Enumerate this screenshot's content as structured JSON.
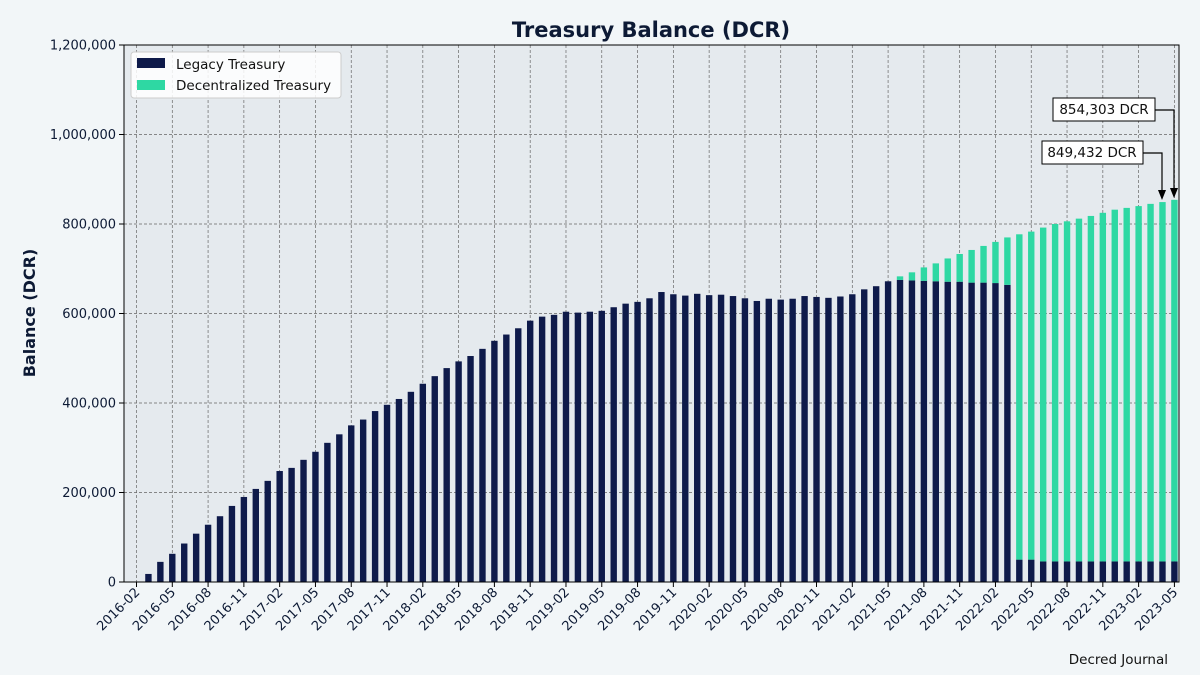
{
  "chart_data": {
    "type": "bar",
    "stacked": true,
    "title": "Treasury Balance (DCR)",
    "xlabel": "",
    "ylabel": "Balance (DCR)",
    "ylim": [
      0,
      1200000
    ],
    "yticks": [
      0,
      200000,
      400000,
      600000,
      800000,
      1000000,
      1200000
    ],
    "ytick_labels": [
      "0",
      "200,000",
      "400,000",
      "600,000",
      "800,000",
      "1,000,000",
      "1,200,000"
    ],
    "xtick_labels": [
      "2016-02",
      "2016-05",
      "2016-08",
      "2016-11",
      "2017-02",
      "2017-05",
      "2017-08",
      "2017-11",
      "2018-02",
      "2018-05",
      "2018-08",
      "2018-11",
      "2019-02",
      "2019-05",
      "2019-08",
      "2019-11",
      "2020-02",
      "2020-05",
      "2020-08",
      "2020-11",
      "2021-02",
      "2021-05",
      "2021-08",
      "2021-11",
      "2022-02",
      "2022-05",
      "2022-08",
      "2022-11",
      "2023-02",
      "2023-05"
    ],
    "grid": true,
    "legend_position": "top-left",
    "categories": [
      "2016-02",
      "2016-03",
      "2016-04",
      "2016-05",
      "2016-06",
      "2016-07",
      "2016-08",
      "2016-09",
      "2016-10",
      "2016-11",
      "2016-12",
      "2017-01",
      "2017-02",
      "2017-03",
      "2017-04",
      "2017-05",
      "2017-06",
      "2017-07",
      "2017-08",
      "2017-09",
      "2017-10",
      "2017-11",
      "2017-12",
      "2018-01",
      "2018-02",
      "2018-03",
      "2018-04",
      "2018-05",
      "2018-06",
      "2018-07",
      "2018-08",
      "2018-09",
      "2018-10",
      "2018-11",
      "2018-12",
      "2019-01",
      "2019-02",
      "2019-03",
      "2019-04",
      "2019-05",
      "2019-06",
      "2019-07",
      "2019-08",
      "2019-09",
      "2019-10",
      "2019-11",
      "2019-12",
      "2020-01",
      "2020-02",
      "2020-03",
      "2020-04",
      "2020-05",
      "2020-06",
      "2020-07",
      "2020-08",
      "2020-09",
      "2020-10",
      "2020-11",
      "2020-12",
      "2021-01",
      "2021-02",
      "2021-03",
      "2021-04",
      "2021-05",
      "2021-06",
      "2021-07",
      "2021-08",
      "2021-09",
      "2021-10",
      "2021-11",
      "2021-12",
      "2022-01",
      "2022-02",
      "2022-03",
      "2022-04",
      "2022-05",
      "2022-06",
      "2022-07",
      "2022-08",
      "2022-09",
      "2022-10",
      "2022-11",
      "2022-12",
      "2023-01",
      "2023-02",
      "2023-03",
      "2023-04",
      "2023-05"
    ],
    "series": [
      {
        "name": "Legacy Treasury",
        "color": "#0e1a4a",
        "values": [
          0,
          18000,
          45000,
          63000,
          86000,
          108000,
          128000,
          147000,
          170000,
          190000,
          208000,
          226000,
          248000,
          255000,
          273000,
          291000,
          311000,
          330000,
          350000,
          363000,
          382000,
          396000,
          409000,
          425000,
          443000,
          460000,
          478000,
          493000,
          505000,
          521000,
          539000,
          553000,
          567000,
          584000,
          593000,
          597000,
          604000,
          602000,
          604000,
          606000,
          614000,
          622000,
          626000,
          634000,
          648000,
          643000,
          640000,
          644000,
          641000,
          642000,
          639000,
          634000,
          628000,
          633000,
          631000,
          633000,
          639000,
          637000,
          635000,
          638000,
          643000,
          654000,
          661000,
          672000,
          675000,
          674000,
          673000,
          672000,
          671000,
          671000,
          669000,
          669000,
          668000,
          664000,
          50000,
          50000,
          46000,
          46000,
          46000,
          46000,
          46000,
          46000,
          46000,
          46000,
          46000,
          46000,
          46000,
          46000
        ]
      },
      {
        "name": "Decentralized Treasury",
        "color": "#2ed8a3",
        "values": [
          0,
          0,
          0,
          0,
          0,
          0,
          0,
          0,
          0,
          0,
          0,
          0,
          0,
          0,
          0,
          0,
          0,
          0,
          0,
          0,
          0,
          0,
          0,
          0,
          0,
          0,
          0,
          0,
          0,
          0,
          0,
          0,
          0,
          0,
          0,
          0,
          0,
          0,
          0,
          0,
          0,
          0,
          0,
          0,
          0,
          0,
          0,
          0,
          0,
          0,
          0,
          0,
          0,
          0,
          0,
          0,
          0,
          0,
          0,
          0,
          0,
          0,
          0,
          0,
          8000,
          18000,
          30000,
          40000,
          52000,
          62000,
          73000,
          82000,
          92000,
          106000,
          727000,
          733000,
          746000,
          754000,
          760000,
          766000,
          772000,
          779000,
          786000,
          790000,
          794000,
          799000,
          803000,
          808000
        ]
      }
    ],
    "annotations": [
      {
        "text": "854,303 DCR",
        "category": "2023-05",
        "value": 854303
      },
      {
        "text": "849,432 DCR",
        "category": "2023-04",
        "value": 849432
      }
    ],
    "credit": "Decred Journal"
  }
}
